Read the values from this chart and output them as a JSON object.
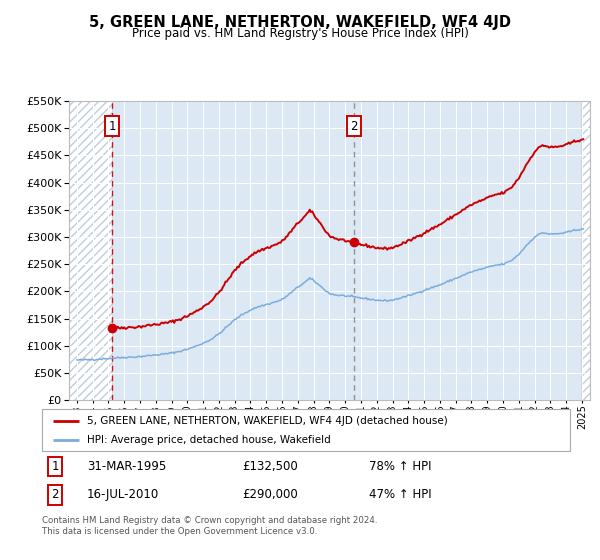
{
  "title": "5, GREEN LANE, NETHERTON, WAKEFIELD, WF4 4JD",
  "subtitle": "Price paid vs. HM Land Registry's House Price Index (HPI)",
  "legend_line1": "5, GREEN LANE, NETHERTON, WAKEFIELD, WF4 4JD (detached house)",
  "legend_line2": "HPI: Average price, detached house, Wakefield",
  "annotation1_label": "1",
  "annotation1_date": "31-MAR-1995",
  "annotation1_price": "£132,500",
  "annotation1_hpi": "78% ↑ HPI",
  "annotation2_label": "2",
  "annotation2_date": "16-JUL-2010",
  "annotation2_price": "£290,000",
  "annotation2_hpi": "47% ↑ HPI",
  "footer": "Contains HM Land Registry data © Crown copyright and database right 2024.\nThis data is licensed under the Open Government Licence v3.0.",
  "red_color": "#cc0000",
  "blue_color": "#7aacdc",
  "background_plot": "#dce9f5",
  "ylim_max": 550000,
  "ytick_step": 50000,
  "purchase1_year": 1995.25,
  "purchase1_price": 132500,
  "purchase2_year": 2010.54,
  "purchase2_price": 290000,
  "xmin": 1993,
  "xmax": 2025
}
